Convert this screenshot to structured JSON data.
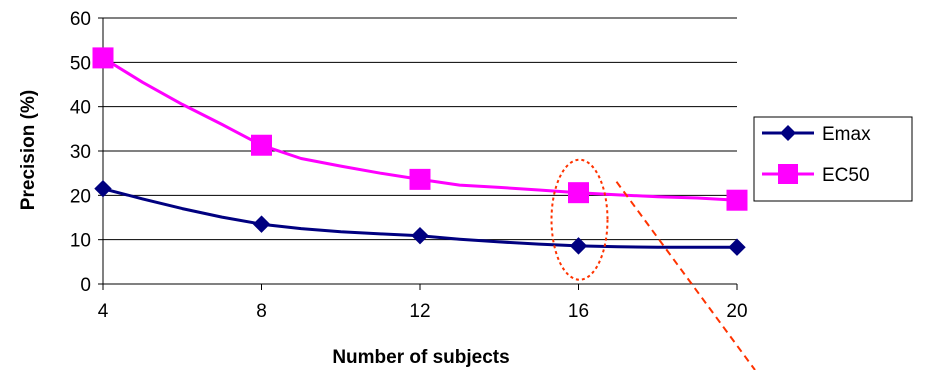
{
  "chart_data": {
    "type": "line",
    "title": "",
    "xlabel": "Number of subjects",
    "ylabel": "Precision (%)",
    "x": [
      4,
      5,
      6,
      7,
      8,
      9,
      10,
      11,
      12,
      13,
      14,
      15,
      16,
      17,
      18,
      19,
      20
    ],
    "xticks": [
      "4",
      "8",
      "12",
      "16",
      "20"
    ],
    "xtick_values": [
      4,
      8,
      12,
      16,
      20
    ],
    "yticks": [
      "0",
      "10",
      "20",
      "30",
      "40",
      "50",
      "60"
    ],
    "ytick_values": [
      0,
      10,
      20,
      30,
      40,
      50,
      60
    ],
    "xlim": [
      4,
      20
    ],
    "ylim": [
      0,
      60
    ],
    "marker_x": [
      4,
      8,
      12,
      16,
      20
    ],
    "series": [
      {
        "name": "Emax",
        "color": "#000080",
        "marker": "diamond",
        "values": [
          21.5,
          19.2,
          17.0,
          15.1,
          13.5,
          12.5,
          11.8,
          11.3,
          10.9,
          10.1,
          9.5,
          9.0,
          8.6,
          8.4,
          8.3,
          8.3,
          8.3
        ]
      },
      {
        "name": "EC50",
        "color": "#ff00ff",
        "marker": "square",
        "values": [
          51.0,
          45.5,
          40.5,
          36.0,
          31.3,
          28.3,
          26.6,
          25.0,
          23.6,
          22.3,
          21.8,
          21.2,
          20.6,
          20.1,
          19.7,
          19.4,
          18.9
        ]
      }
    ],
    "grid": "horizontal",
    "legend_position": "right",
    "annotation": {
      "shape": "dashed-ellipse",
      "color": "#ff3300",
      "center_x": 16,
      "center_y": 14.5
    }
  }
}
